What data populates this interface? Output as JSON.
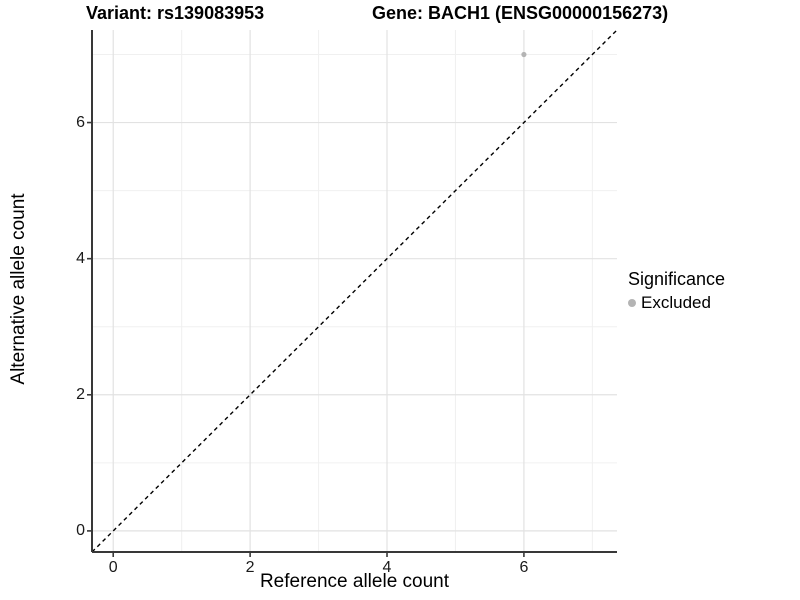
{
  "titles": {
    "left": "Variant: rs139083953",
    "right": "Gene: BACH1 (ENSG00000156273)"
  },
  "chart_data": {
    "type": "scatter",
    "title_left": "Variant: rs139083953",
    "title_right": "Gene: BACH1 (ENSG00000156273)",
    "xlabel": "Reference allele count",
    "ylabel": "Alternative allele count",
    "xlim": [
      -0.31,
      7.36
    ],
    "ylim": [
      -0.31,
      7.36
    ],
    "x_ticks": [
      0,
      2,
      4,
      6
    ],
    "y_ticks": [
      0,
      2,
      4,
      6
    ],
    "x_minor_ticks": [
      1,
      3,
      5,
      7
    ],
    "y_minor_ticks": [
      1,
      3,
      5,
      7
    ],
    "grid": true,
    "series": [
      {
        "name": "Excluded",
        "points": [
          {
            "x": 6,
            "y": 7
          }
        ],
        "color": "#b4b4b4"
      }
    ],
    "reference_line": {
      "type": "identity y=x",
      "style": "dashed",
      "color": "#000000"
    },
    "legend": {
      "title": "Significance",
      "position": "right",
      "entries": [
        {
          "label": "Excluded",
          "color": "#b4b4b4"
        }
      ]
    },
    "colors": {
      "background": "#ffffff",
      "axis_line": "#383838",
      "tick_mark": "#383838",
      "major_grid": "#e2e2e2",
      "minor_grid": "#f0f0f0",
      "point": "#b4b4b4",
      "dashed_line": "#000000"
    }
  }
}
